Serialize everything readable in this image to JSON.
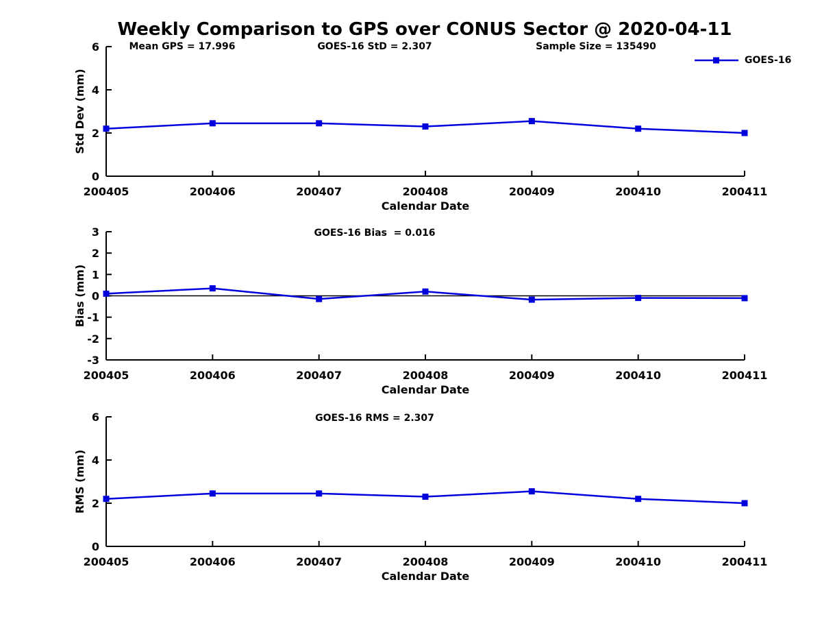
{
  "title": "Weekly Comparison to GPS over CONUS Sector @ 2020-04-11",
  "header": {
    "mean_gps": "Mean GPS = 17.996",
    "goes_std": "GOES-16 StD = 2.307",
    "sample_size": "Sample Size = 135490"
  },
  "legend": {
    "label": "GOES-16",
    "position": "top-right",
    "marker": "square"
  },
  "colors": {
    "series": "#0000DD",
    "axis": "#000000",
    "text": "#000000",
    "zero_line": "#000000",
    "background": "#ffffff"
  },
  "chart_data": [
    {
      "type": "line",
      "series_name": "GOES-16",
      "categories": [
        "200405",
        "200406",
        "200407",
        "200408",
        "200409",
        "200410",
        "200411"
      ],
      "values": [
        2.2,
        2.45,
        2.45,
        2.3,
        2.55,
        2.2,
        2.0
      ],
      "xlabel": "Calendar Date",
      "ylabel": "Std Dev (mm)",
      "ylim": [
        0,
        6
      ],
      "yticks": [
        0,
        2,
        4,
        6
      ],
      "marker": "square",
      "grid": false,
      "zero_line": false
    },
    {
      "type": "line",
      "series_name": "GOES-16",
      "annotation": "GOES-16 Bias  = 0.016",
      "categories": [
        "200405",
        "200406",
        "200407",
        "200408",
        "200409",
        "200410",
        "200411"
      ],
      "values": [
        0.1,
        0.35,
        -0.15,
        0.2,
        -0.18,
        -0.1,
        -0.11
      ],
      "xlabel": "Calendar Date",
      "ylabel": "Bias (mm)",
      "ylim": [
        -3,
        3
      ],
      "yticks": [
        3,
        2,
        1,
        0,
        -1,
        -2,
        -3
      ],
      "marker": "square",
      "grid": false,
      "zero_line": true
    },
    {
      "type": "line",
      "series_name": "GOES-16",
      "annotation": "GOES-16 RMS = 2.307",
      "categories": [
        "200405",
        "200406",
        "200407",
        "200408",
        "200409",
        "200410",
        "200411"
      ],
      "values": [
        2.2,
        2.45,
        2.45,
        2.3,
        2.55,
        2.2,
        2.0
      ],
      "xlabel": "Calendar Date",
      "ylabel": "RMS (mm)",
      "ylim": [
        0,
        6
      ],
      "yticks": [
        0,
        2,
        4,
        6
      ],
      "marker": "square",
      "grid": false,
      "zero_line": false
    }
  ]
}
